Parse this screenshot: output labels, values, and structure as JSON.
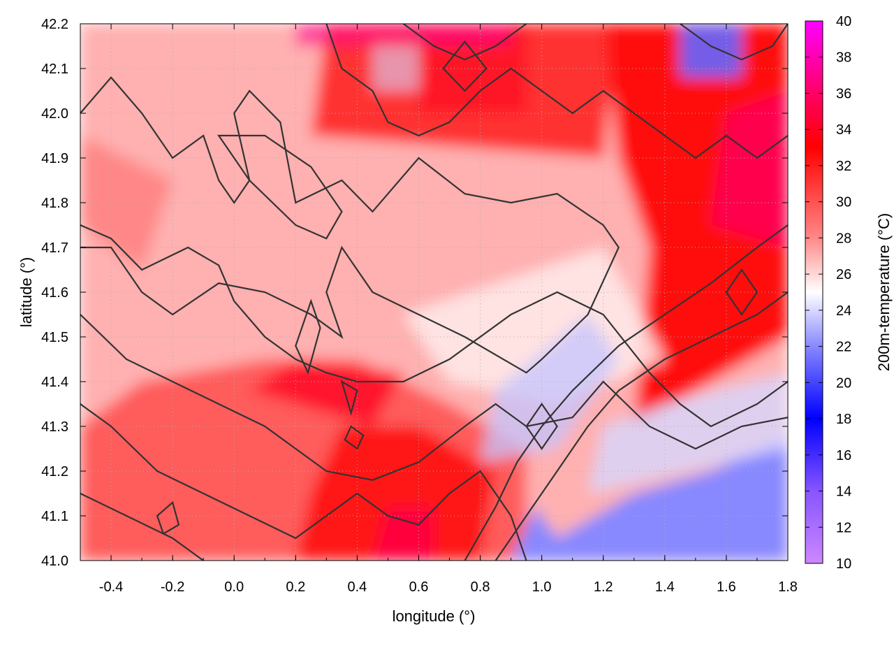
{
  "chart_data": {
    "type": "heatmap",
    "xlabel": "longitude (°)",
    "ylabel": "latitude (°)",
    "colorbar_label": "200m-temperature (°C)",
    "xlim": [
      -0.5,
      1.8
    ],
    "ylim": [
      41.0,
      42.2
    ],
    "zlim": [
      10,
      40
    ],
    "x_ticks": [
      -0.4,
      -0.2,
      0.0,
      0.2,
      0.4,
      0.6,
      0.8,
      1.0,
      1.2,
      1.4,
      1.6,
      1.8
    ],
    "x_tick_labels": [
      "-0.4",
      "-0.2",
      "0.0",
      "0.2",
      "0.4",
      "0.6",
      "0.8",
      "1.0",
      "1.2",
      "1.4",
      "1.6",
      "1.8"
    ],
    "y_ticks": [
      41.0,
      41.1,
      41.2,
      41.3,
      41.4,
      41.5,
      41.6,
      41.7,
      41.8,
      41.9,
      42.0,
      42.1,
      42.2
    ],
    "y_tick_labels": [
      "41.0",
      "41.1",
      "41.2",
      "41.3",
      "41.4",
      "41.5",
      "41.6",
      "41.7",
      "41.8",
      "41.9",
      "42.0",
      "42.1",
      "42.2"
    ],
    "colorbar_ticks": [
      10,
      12,
      14,
      16,
      18,
      20,
      22,
      24,
      26,
      28,
      30,
      32,
      34,
      36,
      38,
      40
    ],
    "colorbar_tick_labels": [
      "10",
      "12",
      "14",
      "16",
      "18",
      "20",
      "22",
      "24",
      "26",
      "28",
      "30",
      "32",
      "34",
      "36",
      "38",
      "40"
    ],
    "colormap": [
      [
        10,
        "#cc88ff"
      ],
      [
        14,
        "#8855ff"
      ],
      [
        18,
        "#0000ff"
      ],
      [
        22,
        "#8888ff"
      ],
      [
        25,
        "#ffffff"
      ],
      [
        28,
        "#ff8888"
      ],
      [
        33,
        "#ff0000"
      ],
      [
        36,
        "#ff0066"
      ],
      [
        40,
        "#ff00ff"
      ]
    ],
    "grid": true,
    "contour_color": "#333333"
  }
}
